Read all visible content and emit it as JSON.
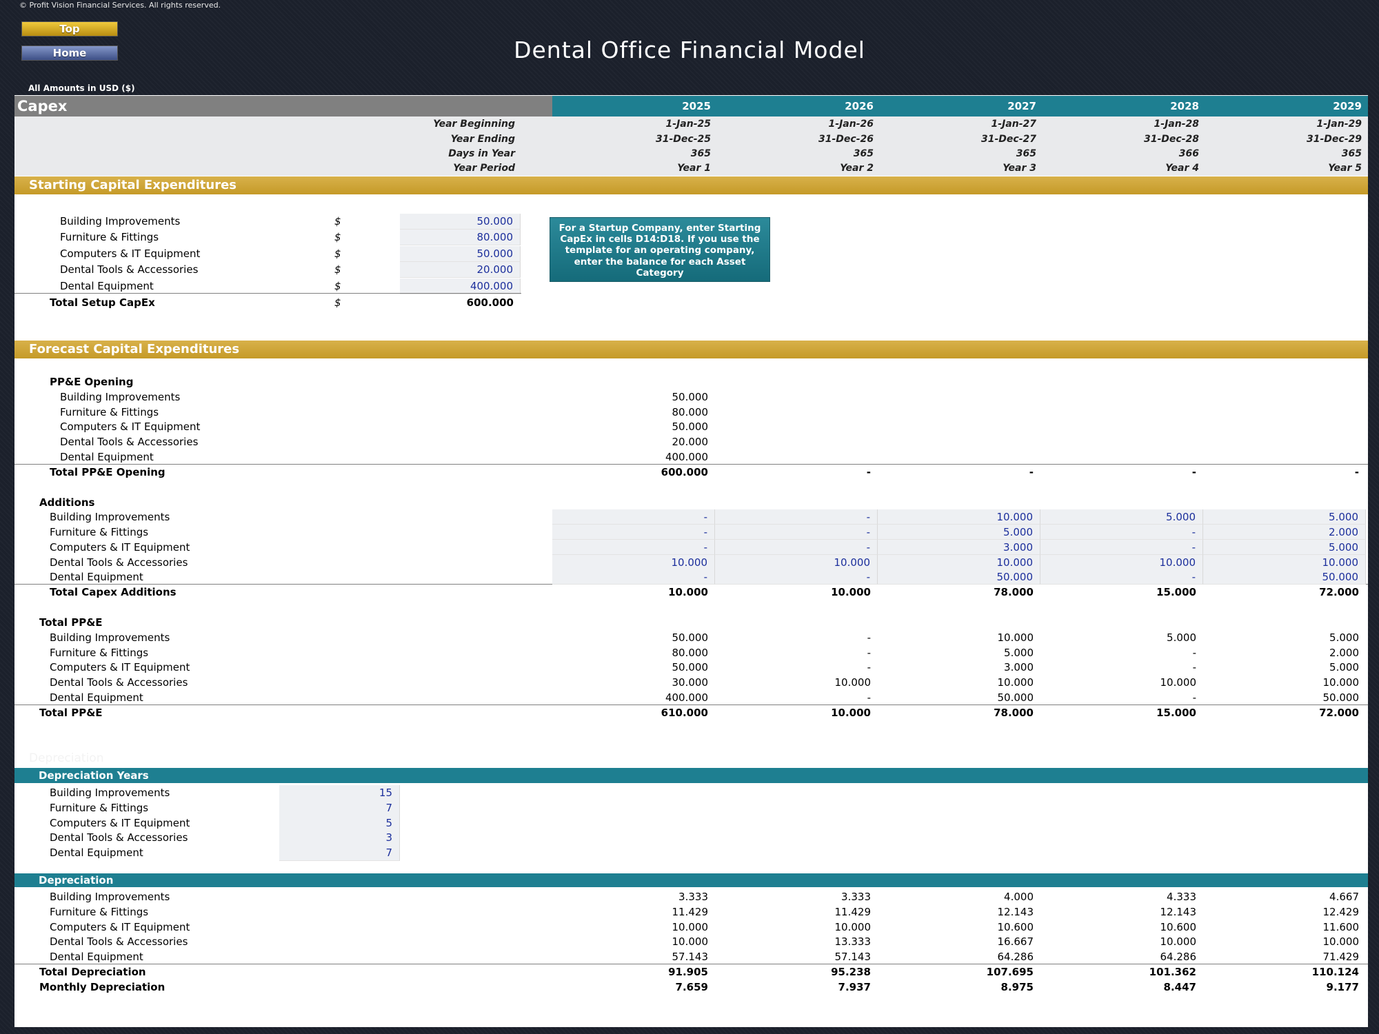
{
  "copyright": "© Profit Vision Financial Services. All rights reserved.",
  "nav": {
    "top": "Top",
    "home": "Home"
  },
  "title": "Dental Office Financial Model",
  "amounts_note": "All Amounts in  USD ($)",
  "header": {
    "sheet_name": "Capex",
    "years": [
      "2025",
      "2026",
      "2027",
      "2028",
      "2029"
    ],
    "year_beginning_label": "Year Beginning",
    "year_beginning": [
      "1-Jan-25",
      "1-Jan-26",
      "1-Jan-27",
      "1-Jan-28",
      "1-Jan-29"
    ],
    "year_ending_label": "Year Ending",
    "year_ending": [
      "31-Dec-25",
      "31-Dec-26",
      "31-Dec-27",
      "31-Dec-28",
      "31-Dec-29"
    ],
    "days_label": "Days in Year",
    "days": [
      "365",
      "365",
      "365",
      "366",
      "365"
    ],
    "period_label": "Year Period",
    "period": [
      "Year 1",
      "Year 2",
      "Year 3",
      "Year 4",
      "Year 5"
    ]
  },
  "starting": {
    "title": "Starting Capital Expenditures",
    "currency": "$",
    "items": [
      {
        "label": "Building Improvements",
        "value": "50.000"
      },
      {
        "label": "Furniture & Fittings",
        "value": "80.000"
      },
      {
        "label": "Computers & IT Equipment",
        "value": "50.000"
      },
      {
        "label": "Dental Tools & Accessories",
        "value": "20.000"
      },
      {
        "label": "Dental Equipment",
        "value": "400.000"
      }
    ],
    "total_label": "Total Setup CapEx",
    "total_value": "600.000",
    "note": "For a Startup Company, enter Starting CapEx in cells D14:D18. If you use the template for an operating company, enter the balance for each Asset Category"
  },
  "forecast": {
    "title": "Forecast Capital Expenditures",
    "opening": {
      "title": "PP&E Opening",
      "items": [
        {
          "label": "Building Improvements",
          "value": "50.000"
        },
        {
          "label": "Furniture & Fittings",
          "value": "80.000"
        },
        {
          "label": "Computers & IT Equipment",
          "value": "50.000"
        },
        {
          "label": "Dental Tools & Accessories",
          "value": "20.000"
        },
        {
          "label": "Dental Equipment",
          "value": "400.000"
        }
      ],
      "total_label": "Total PP&E Opening",
      "total": [
        "600.000",
        "-",
        "-",
        "-",
        "-"
      ]
    },
    "additions": {
      "title": "Additions",
      "items": [
        {
          "label": "Building Improvements",
          "values": [
            "-",
            "-",
            "10.000",
            "5.000",
            "5.000"
          ]
        },
        {
          "label": "Furniture & Fittings",
          "values": [
            "-",
            "-",
            "5.000",
            "-",
            "2.000"
          ]
        },
        {
          "label": "Computers & IT Equipment",
          "values": [
            "-",
            "-",
            "3.000",
            "-",
            "5.000"
          ]
        },
        {
          "label": "Dental Tools & Accessories",
          "values": [
            "10.000",
            "10.000",
            "10.000",
            "10.000",
            "10.000"
          ]
        },
        {
          "label": "Dental Equipment",
          "values": [
            "-",
            "-",
            "50.000",
            "-",
            "50.000"
          ]
        }
      ],
      "total_label": "Total Capex Additions",
      "total": [
        "10.000",
        "10.000",
        "78.000",
        "15.000",
        "72.000"
      ]
    },
    "total_ppe": {
      "title": "Total PP&E",
      "items": [
        {
          "label": "Building Improvements",
          "values": [
            "50.000",
            "-",
            "10.000",
            "5.000",
            "5.000"
          ]
        },
        {
          "label": "Furniture & Fittings",
          "values": [
            "80.000",
            "-",
            "5.000",
            "-",
            "2.000"
          ]
        },
        {
          "label": "Computers & IT Equipment",
          "values": [
            "50.000",
            "-",
            "3.000",
            "-",
            "5.000"
          ]
        },
        {
          "label": "Dental Tools & Accessories",
          "values": [
            "30.000",
            "10.000",
            "10.000",
            "10.000",
            "10.000"
          ]
        },
        {
          "label": "Dental Equipment",
          "values": [
            "400.000",
            "-",
            "50.000",
            "-",
            "50.000"
          ]
        }
      ],
      "total_label": "Total PP&E",
      "total": [
        "610.000",
        "10.000",
        "78.000",
        "15.000",
        "72.000"
      ]
    }
  },
  "faint_label": "Depreciation",
  "dep_years": {
    "title": "Depreciation Years",
    "items": [
      {
        "label": "Building Improvements",
        "value": "15"
      },
      {
        "label": "Furniture & Fittings",
        "value": "7"
      },
      {
        "label": "Computers & IT Equipment",
        "value": "5"
      },
      {
        "label": "Dental Tools & Accessories",
        "value": "3"
      },
      {
        "label": "Dental Equipment",
        "value": "7"
      }
    ]
  },
  "depreciation": {
    "title": "Depreciation",
    "items": [
      {
        "label": "Building Improvements",
        "values": [
          "3.333",
          "3.333",
          "4.000",
          "4.333",
          "4.667"
        ]
      },
      {
        "label": "Furniture & Fittings",
        "values": [
          "11.429",
          "11.429",
          "12.143",
          "12.143",
          "12.429"
        ]
      },
      {
        "label": "Computers & IT Equipment",
        "values": [
          "10.000",
          "10.000",
          "10.600",
          "10.600",
          "11.600"
        ]
      },
      {
        "label": "Dental Tools & Accessories",
        "values": [
          "10.000",
          "13.333",
          "16.667",
          "10.000",
          "10.000"
        ]
      },
      {
        "label": "Dental Equipment",
        "values": [
          "57.143",
          "57.143",
          "64.286",
          "64.286",
          "71.429"
        ]
      }
    ],
    "total_label": "Total Depreciation",
    "total": [
      "91.905",
      "95.238",
      "107.695",
      "101.362",
      "110.124"
    ],
    "monthly_label": "Monthly Depreciation",
    "monthly": [
      "7.659",
      "7.937",
      "8.975",
      "8.447",
      "9.177"
    ]
  },
  "colors": {
    "teal": "#1e7f91",
    "gold": "#c59a28",
    "input_blue": "#1c2f9c"
  }
}
